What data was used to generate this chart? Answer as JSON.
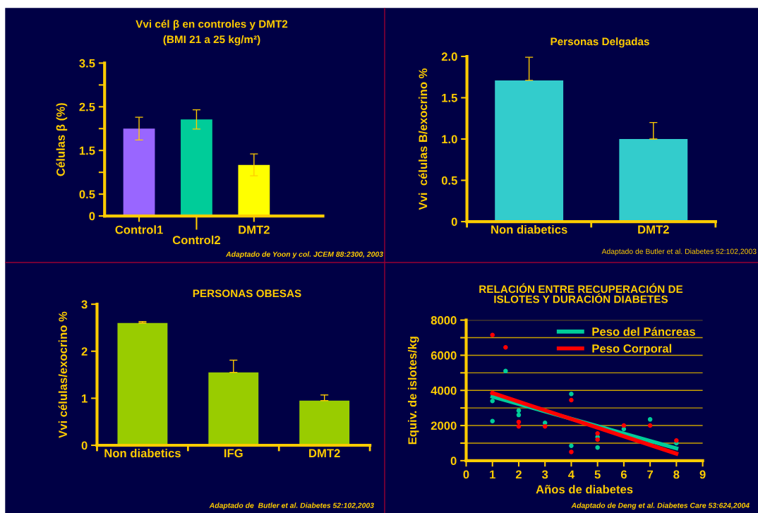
{
  "chart_data": [
    {
      "type": "bar",
      "title": "Vvi cél β en controles y DMT2",
      "subtitle": "(BMI 21 a 25 kg/m²)",
      "ylabel": "Células β (%)",
      "categories": [
        "Control1",
        "Control2",
        "DMT2"
      ],
      "values": [
        2.0,
        2.21,
        1.17
      ],
      "errors": [
        0.26,
        0.22,
        0.25
      ],
      "colors": [
        "#9966ff",
        "#00cc99",
        "#ffff00"
      ],
      "ylim": [
        0,
        3.5
      ],
      "yticks": [
        0,
        0.5,
        {
          "value": 1,
          "label": null
        },
        1.5,
        {
          "value": 2,
          "label": null
        },
        2.5,
        {
          "value": 3,
          "label": null
        },
        3.5
      ],
      "grid": false,
      "annotations": [
        "Adaptado de Yoon y col. JCEM 88:2300, 2003"
      ]
    },
    {
      "type": "bar",
      "title": "Personas Delgadas",
      "ylabel": "Vvi  células B/exocrino %",
      "categories": [
        "Non diabetics",
        "DMT2"
      ],
      "values": [
        1.71,
        1.0
      ],
      "errors": [
        [
          1.71,
          1.99
        ],
        [
          1.0,
          1.2
        ]
      ],
      "colors": [
        "#33cccc",
        "#33cccc"
      ],
      "ylim": [
        0,
        2.0
      ],
      "yticks": [
        0,
        0.5,
        {
          "value": 1,
          "label": "1.0"
        },
        1.5,
        {
          "value": 2,
          "label": "2.0"
        }
      ],
      "grid": false,
      "annotations": [
        "Adaptado de Butler et al. Diabetes 52:102,2003"
      ]
    },
    {
      "type": "bar",
      "title": "PERSONAS OBESAS",
      "ylabel": "Vvi células/exocrino %",
      "categories": [
        "Non diabetics",
        "IFG",
        "DMT2"
      ],
      "values": [
        2.6,
        1.55,
        0.95
      ],
      "errors": [
        [
          2.6,
          2.63
        ],
        [
          1.55,
          1.81
        ],
        [
          0.95,
          1.07
        ]
      ],
      "colors": [
        "#99cc00",
        "#99cc00",
        "#99cc00"
      ],
      "ylim": [
        0,
        3
      ],
      "yticks": [
        0,
        1,
        2,
        3
      ],
      "grid": false,
      "annotations": [
        "Adaptado de  Butler et al. Diabetes 52:102,2003"
      ]
    },
    {
      "type": "scatter",
      "title": "RELACIÓN ENTRE RECUPERACIÓN DE\nISLOTES Y DURACIÓN DIABETES",
      "xlabel": "Años de diabetes",
      "ylabel": "Equiv. de islotes/kg",
      "xlim": [
        0,
        9
      ],
      "xticks": [
        0,
        1,
        2,
        3,
        4,
        5,
        6,
        7,
        8,
        9
      ],
      "ylim": [
        0,
        8000
      ],
      "yticks": [
        0,
        {
          "value": 1000,
          "label": null
        },
        2000,
        {
          "value": 3000,
          "label": null
        },
        4000,
        {
          "value": 5000,
          "label": null
        },
        6000,
        {
          "value": 7000,
          "label": null
        },
        8000
      ],
      "grid": "y",
      "legend": "top right",
      "series": [
        {
          "type": "scatter",
          "marker": "circle",
          "color": "#00cc99",
          "x": [
            1,
            1,
            1.5,
            2,
            2,
            3,
            4,
            4,
            5,
            5,
            6,
            7,
            8
          ],
          "values": [
            3400,
            2250,
            5100,
            2850,
            2600,
            2150,
            3800,
            850,
            1350,
            750,
            1800,
            2350,
            1000
          ]
        },
        {
          "type": "scatter",
          "marker": "circle",
          "color": "#ff0000",
          "x": [
            1,
            1.5,
            1,
            2,
            2,
            3,
            4,
            4,
            5,
            5,
            6,
            7,
            8
          ],
          "values": [
            7150,
            6450,
            3850,
            2200,
            1950,
            1950,
            3450,
            500,
            1550,
            1200,
            2000,
            2000,
            1150
          ]
        },
        {
          "type": "line",
          "name": "Peso del Páncreas",
          "color": "#00cc99",
          "x": [
            1,
            8
          ],
          "values": [
            3650,
            700
          ]
        },
        {
          "type": "line",
          "name": "Peso Corporal",
          "color": "#ff0000",
          "x": [
            1,
            8
          ],
          "values": [
            3850,
            400
          ]
        }
      ],
      "annotations": [
        "Adaptado de Deng et al. Diabetes Care 53:624,2004"
      ]
    }
  ]
}
